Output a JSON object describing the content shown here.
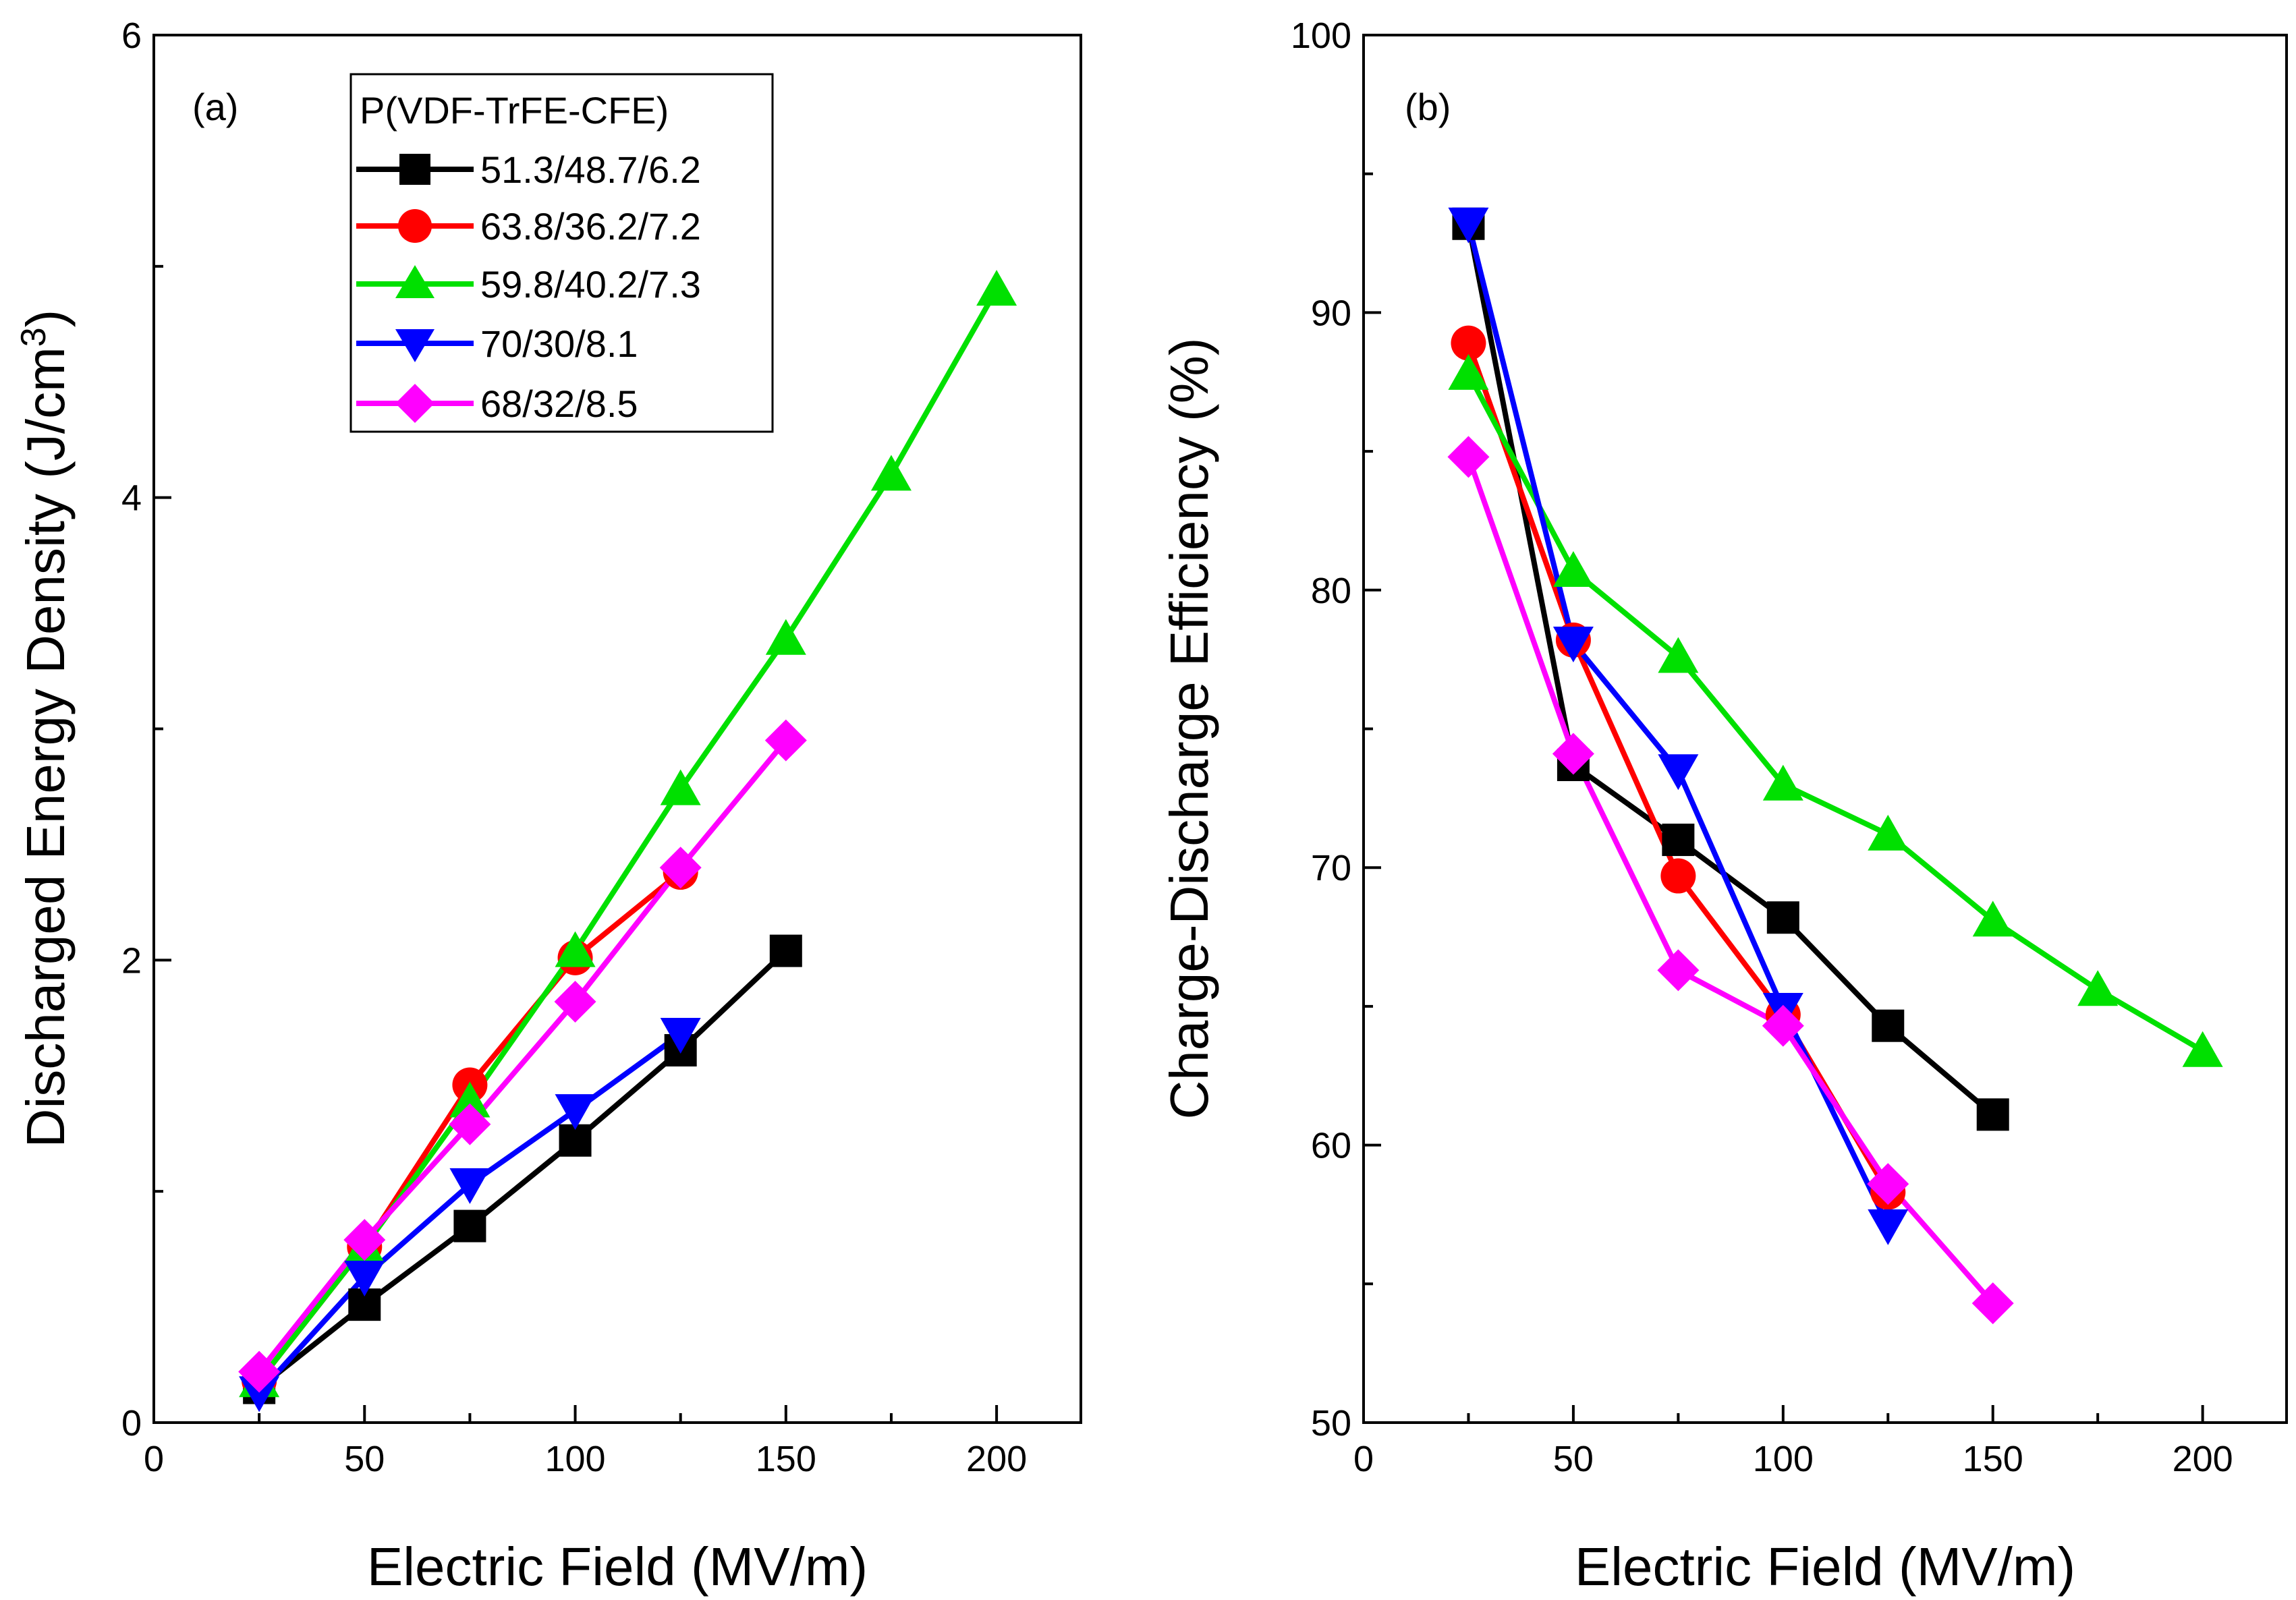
{
  "legend": {
    "title": "P(VDF-TrFE-CFE)",
    "entries": [
      {
        "label": "51.3/48.7/6.2",
        "color": "#000000",
        "marker": "square"
      },
      {
        "label": "63.8/36.2/7.2",
        "color": "#ff0000",
        "marker": "circle"
      },
      {
        "label": "59.8/40.2/7.3",
        "color": "#00e000",
        "marker": "triangle-up"
      },
      {
        "label": "70/30/8.1",
        "color": "#0000ff",
        "marker": "triangle-down"
      },
      {
        "label": "68/32/8.5",
        "color": "#ff00ff",
        "marker": "diamond"
      }
    ]
  },
  "chart_data": [
    {
      "type": "line",
      "panel_label": "(a)",
      "xlabel": "Electric Field (MV/m)",
      "ylabel": "Discharged Energy Density (J/cm",
      "ylabel_sup": "3",
      "ylabel_close": ")",
      "xlim": [
        0,
        220
      ],
      "ylim": [
        0,
        6
      ],
      "xticks": [
        0,
        50,
        100,
        150,
        200
      ],
      "yticks": [
        0,
        2,
        4,
        6
      ],
      "series": [
        {
          "name": "51.3/48.7/6.2",
          "x": [
            25,
            50,
            75,
            100,
            125,
            150
          ],
          "y": [
            0.15,
            0.51,
            0.85,
            1.22,
            1.61,
            2.04
          ]
        },
        {
          "name": "63.8/36.2/7.2",
          "x": [
            25,
            50,
            75,
            100,
            125
          ],
          "y": [
            0.18,
            0.76,
            1.46,
            2.01,
            2.38
          ]
        },
        {
          "name": "59.8/40.2/7.3",
          "x": [
            25,
            50,
            75,
            100,
            125,
            150,
            175,
            200
          ],
          "y": [
            0.18,
            0.76,
            1.39,
            2.04,
            2.74,
            3.39,
            4.1,
            4.9
          ]
        },
        {
          "name": "70/30/8.1",
          "x": [
            25,
            50,
            75,
            100,
            125
          ],
          "y": [
            0.13,
            0.63,
            1.03,
            1.35,
            1.68
          ]
        },
        {
          "name": "68/32/8.5",
          "x": [
            25,
            50,
            75,
            100,
            125,
            150
          ],
          "y": [
            0.22,
            0.79,
            1.29,
            1.82,
            2.4,
            2.95
          ]
        }
      ]
    },
    {
      "type": "line",
      "panel_label": "(b)",
      "xlabel": "Electric Field (MV/m)",
      "ylabel": "Charge-Discharge Efficiency (%)",
      "xlim": [
        0,
        220
      ],
      "ylim": [
        50,
        100
      ],
      "xticks": [
        0,
        50,
        100,
        150,
        200
      ],
      "yticks": [
        50,
        60,
        70,
        80,
        90,
        100
      ],
      "series": [
        {
          "name": "51.3/48.7/6.2",
          "x": [
            25,
            50,
            75,
            100,
            125,
            150
          ],
          "y": [
            93.2,
            73.7,
            71.0,
            68.2,
            64.3,
            61.1
          ]
        },
        {
          "name": "63.8/36.2/7.2",
          "x": [
            25,
            50,
            75,
            100,
            125
          ],
          "y": [
            88.9,
            78.2,
            69.7,
            64.7,
            58.3
          ]
        },
        {
          "name": "59.8/40.2/7.3",
          "x": [
            25,
            50,
            75,
            100,
            125,
            150,
            175,
            200
          ],
          "y": [
            87.8,
            80.7,
            77.6,
            73.0,
            71.2,
            68.1,
            65.6,
            63.4
          ]
        },
        {
          "name": "70/30/8.1",
          "x": [
            25,
            50,
            75,
            100,
            125
          ],
          "y": [
            93.2,
            78.1,
            73.5,
            64.9,
            57.1
          ]
        },
        {
          "name": "68/32/8.5",
          "x": [
            25,
            50,
            75,
            100,
            125,
            150
          ],
          "y": [
            84.8,
            74.1,
            66.3,
            64.3,
            58.6,
            54.3
          ]
        }
      ]
    }
  ]
}
